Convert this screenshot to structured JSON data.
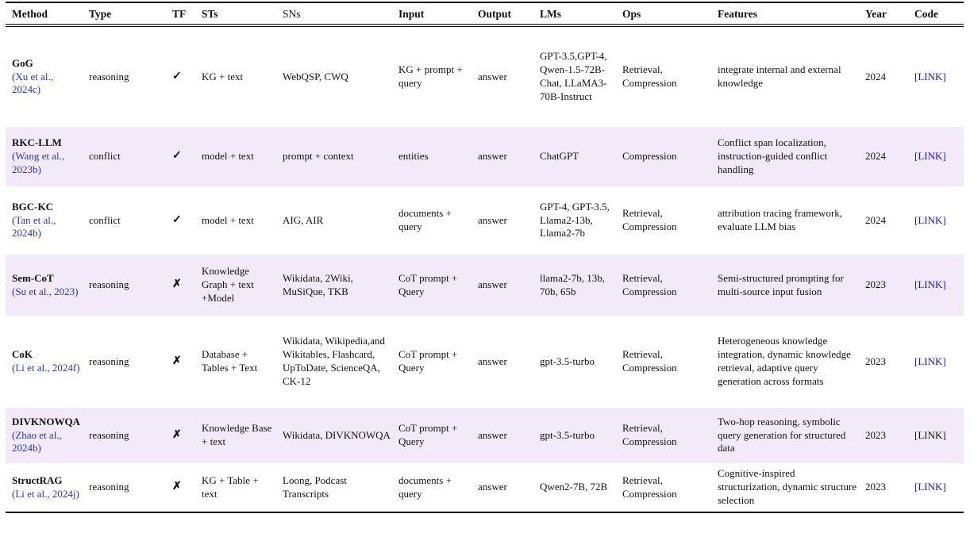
{
  "colors": {
    "text": "#111111",
    "citation_blue": "#2b35a8",
    "link_blue": "#2020aa",
    "highlight_row_bg": "#f3eaf9"
  },
  "icons": {
    "check": "✓",
    "cross": "✗"
  },
  "table": {
    "columns": [
      {
        "label": "Method",
        "bold": true
      },
      {
        "label": "Type",
        "bold": true
      },
      {
        "label": "TF",
        "bold": true
      },
      {
        "label": "STs",
        "bold": true
      },
      {
        "label": "SNs",
        "bold": false
      },
      {
        "label": "Input",
        "bold": true
      },
      {
        "label": "Output",
        "bold": true
      },
      {
        "label": "LMs",
        "bold": true
      },
      {
        "label": "Ops",
        "bold": true
      },
      {
        "label": "Features",
        "bold": true
      },
      {
        "label": "Year",
        "bold": true
      },
      {
        "label": "Code",
        "bold": true
      }
    ],
    "rows": [
      {
        "method": "GoG",
        "citation": "(Xu et al., 2024c)",
        "type": "reasoning",
        "tf": "check",
        "sts": "KG + text",
        "sns": "WebQSP, CWQ",
        "input": "KG + prompt + query",
        "output": "answer",
        "lms": "GPT-3.5,GPT-4, Qwen-1.5-72B-Chat, LLaMA3-70B-Instruct",
        "ops": "Retrieval, Compression",
        "features": "integrate internal and external knowledge",
        "year": "2024",
        "code": "[LINK]",
        "highlight": false,
        "code_is_link": true
      },
      {
        "method": "RKC-LLM",
        "citation": "(Wang et al., 2023b)",
        "type": "conflict",
        "tf": "check",
        "sts": "model + text",
        "sns": "prompt + context",
        "input": "entities",
        "output": "answer",
        "lms": "ChatGPT",
        "ops": "Compression",
        "features": "Conflict span localization, instruction-guided conflict handling",
        "year": "2024",
        "code": "[LINK]",
        "highlight": true,
        "code_is_link": true
      },
      {
        "method": "BGC-KC",
        "citation": "(Tan et al., 2024b)",
        "type": "conflict",
        "tf": "check",
        "sts": "model + text",
        "sns": "AIG, AIR",
        "input": "documents + query",
        "output": "answer",
        "lms": "GPT-4, GPT-3.5, Llama2-13b, Llama2-7b",
        "ops": "Retrieval, Compression",
        "features": "attribution tracing framework, evaluate LLM bias",
        "year": "2024",
        "code": "[LINK]",
        "highlight": false,
        "code_is_link": true
      },
      {
        "method": "Sem-CoT",
        "citation": "(Su et al., 2023)",
        "type": "reasoning",
        "tf": "cross",
        "sts": "Knowledge Graph + text +Model",
        "sns": "Wikidata, 2Wiki, MuSiQue, TKB",
        "input": "CoT prompt + Query",
        "output": "answer",
        "lms": "llama2-7b, 13b, 70b, 65b",
        "ops": "Retrieval, Compression",
        "features": "Semi-structured prompting for multi-source input fusion",
        "year": "2023",
        "code": "[LINK]",
        "highlight": true,
        "code_is_link": true
      },
      {
        "method": "CoK",
        "citation": "(Li et al., 2024f)",
        "type": "reasoning",
        "tf": "cross",
        "sts": "Database + Tables + Text",
        "sns": "Wikidata, Wikipedia,and Wikitables, Flashcard, UpToDate, ScienceQA, CK-12",
        "input": "CoT prompt + Query",
        "output": "answer",
        "lms": "gpt-3.5-turbo",
        "ops": "Retrieval, Compression",
        "features": "Heterogeneous knowledge integration, dynamic knowledge retrieval, adaptive query generation across formats",
        "year": "2023",
        "code": "[LINK]",
        "highlight": false,
        "code_is_link": true
      },
      {
        "method": "DIVKNOWQA",
        "citation": "(Zhao et al., 2024b)",
        "type": "reasoning",
        "tf": "cross",
        "sts": "Knowledge Base + text",
        "sns": "Wikidata, DIVKNOWQA",
        "input": "CoT prompt + Query",
        "output": "answer",
        "lms": "gpt-3.5-turbo",
        "ops": "Retrieval, Compression",
        "features": "Two-hop reasoning, symbolic query generation for structured data",
        "year": "2023",
        "code": "[LINK]",
        "highlight": true,
        "code_is_link": false
      },
      {
        "method": "StructRAG",
        "citation": "(Li et al., 2024j)",
        "type": "reasoning",
        "tf": "cross",
        "sts": "KG + Table + text",
        "sns": "Loong, Podcast Transcripts",
        "input": "documents + query",
        "output": "answer",
        "lms": "Qwen2-7B, 72B",
        "ops": "Retrieval, Compression",
        "features": "Cognitive-inspired structurization, dynamic structure selection",
        "year": "2023",
        "code": "[LINK]",
        "highlight": false,
        "code_is_link": true
      }
    ]
  }
}
